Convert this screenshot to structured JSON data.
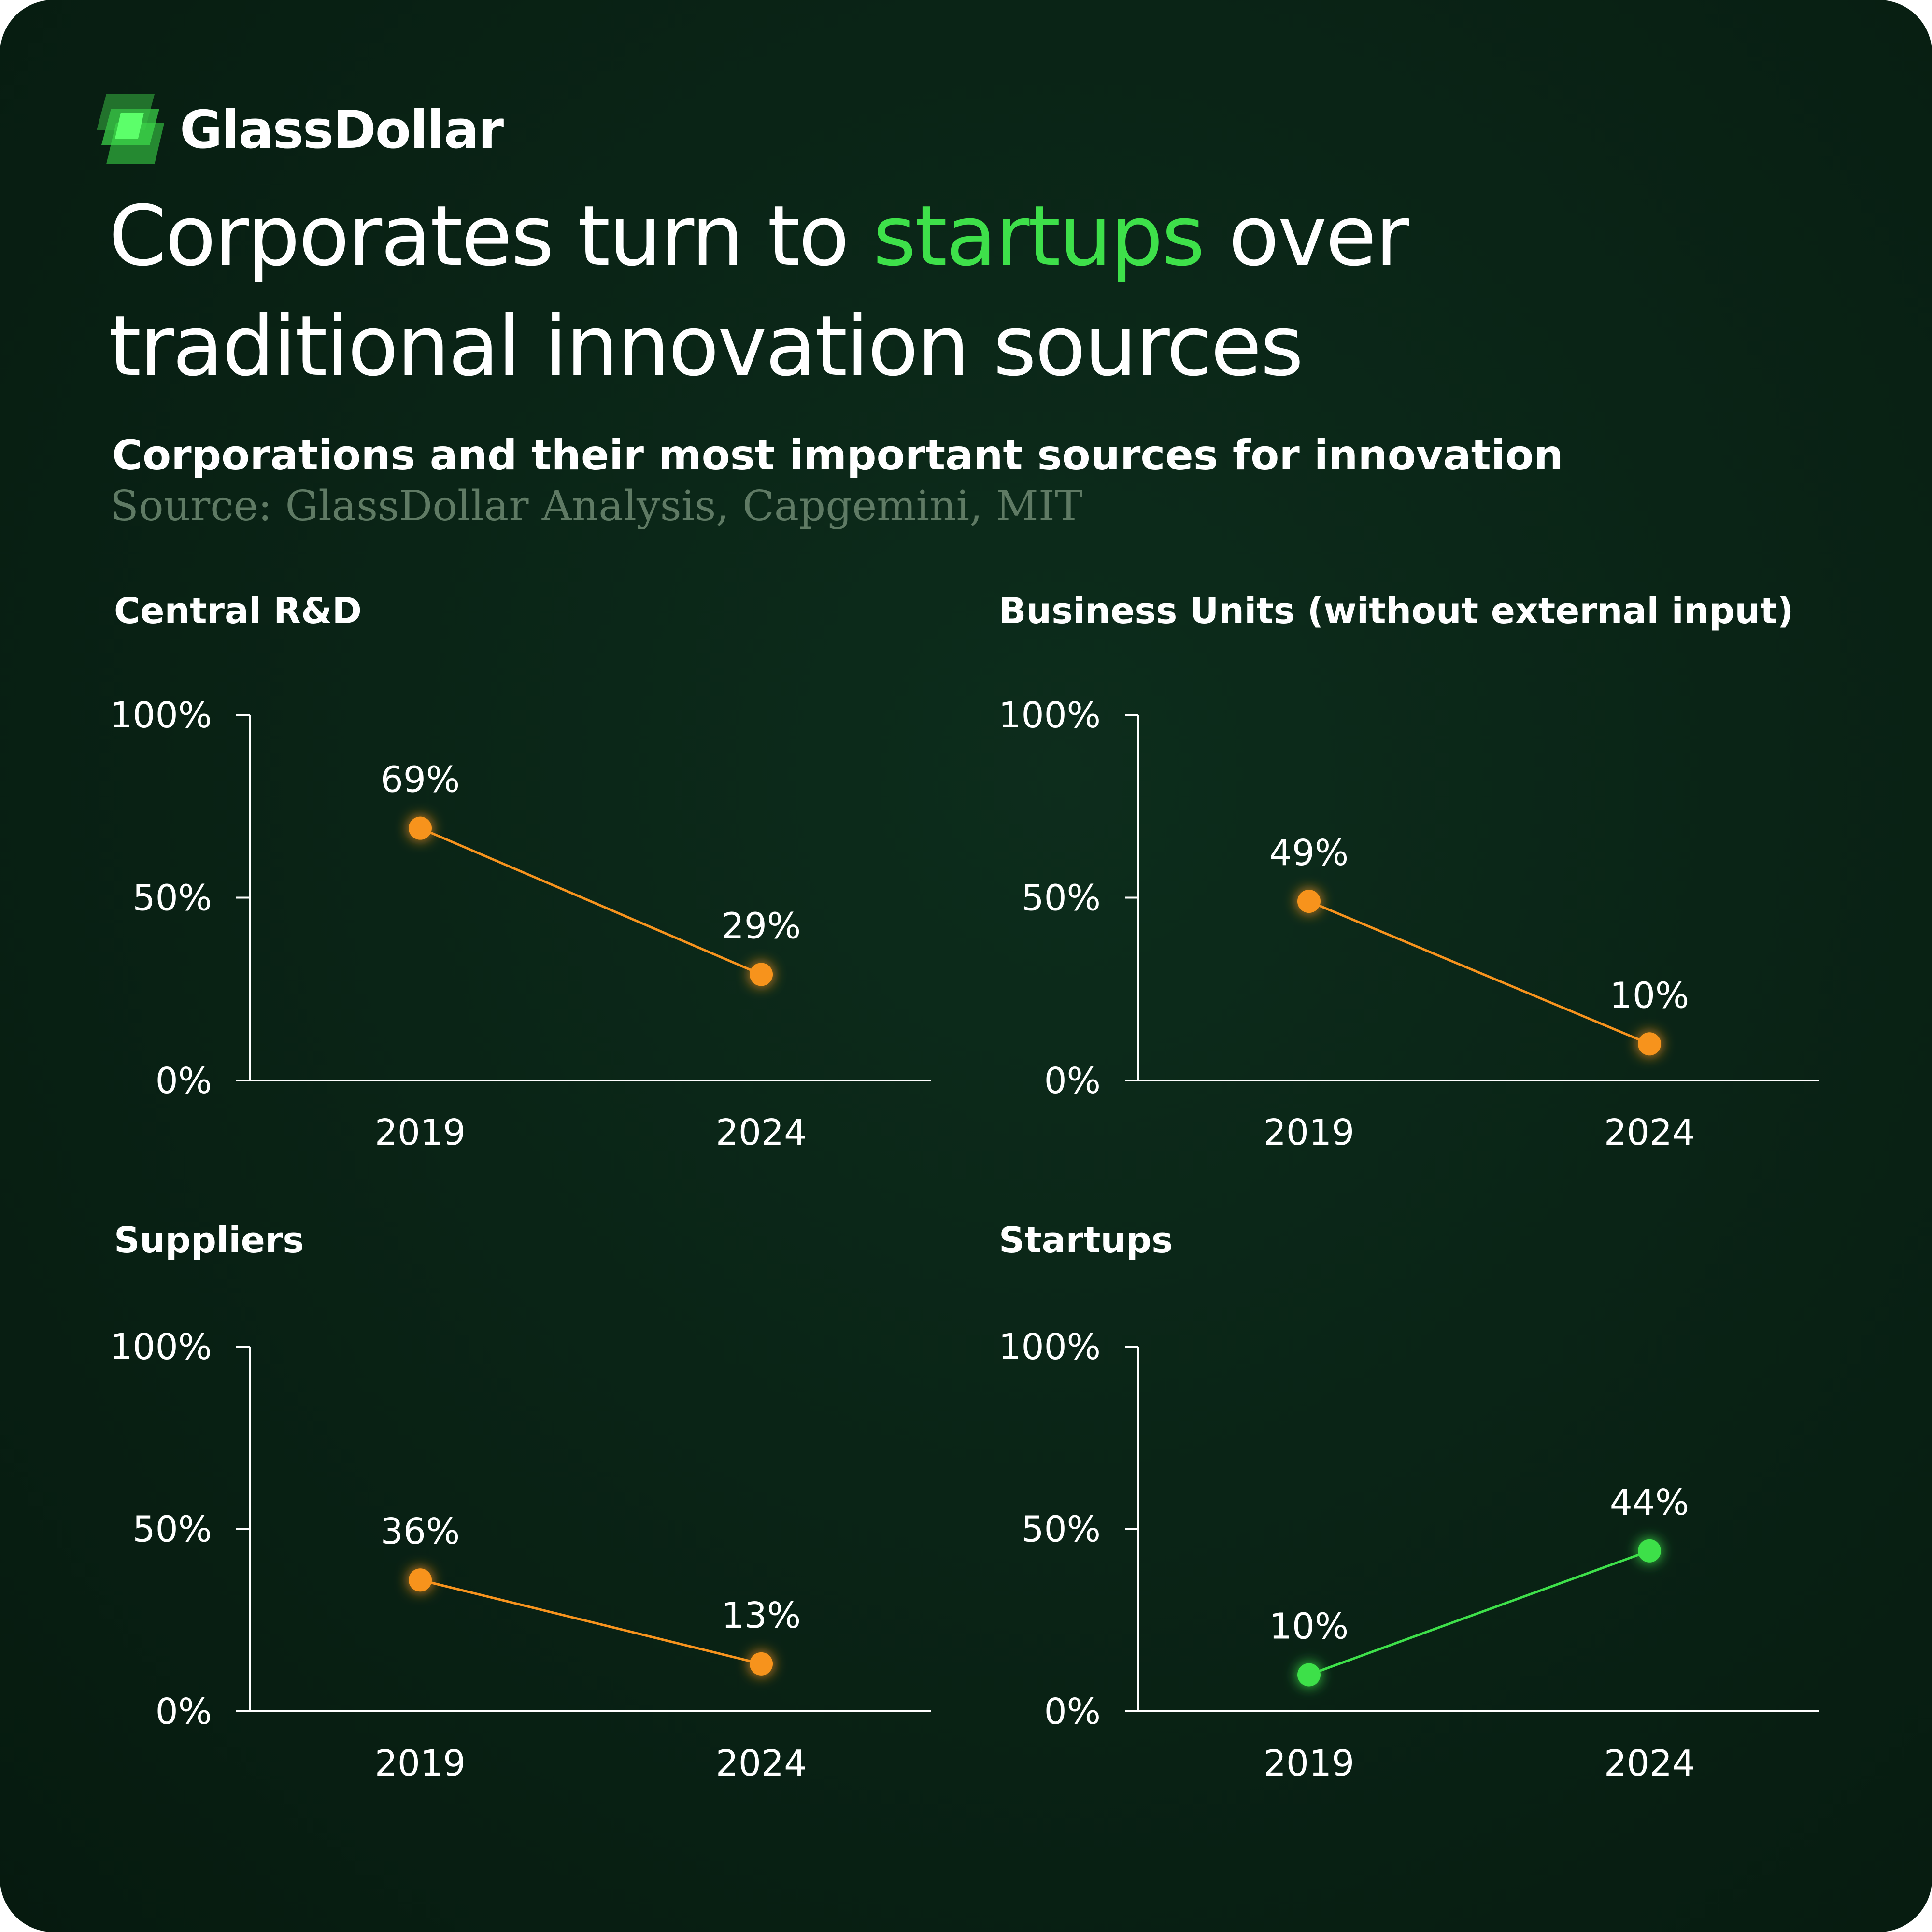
{
  "brand": {
    "name": "GlassDollar",
    "accent_color": "#3ee04a"
  },
  "headline": {
    "part1": "Corporates turn to ",
    "highlight": "startups",
    "part2": " over",
    "line2": "traditional innovation sources"
  },
  "subtitle": "Corporations and their most important sources for innovation",
  "source": "Source: GlassDollar Analysis, Capgemini, MIT",
  "colors": {
    "background": "#0a2416",
    "decline": "#f7931e",
    "growth": "#3ee04a",
    "axis": "#ffffff"
  },
  "chart_data": [
    {
      "type": "line",
      "title": "Central R&D",
      "x": [
        "2019",
        "2024"
      ],
      "values": [
        69,
        29
      ],
      "labels": [
        "69%",
        "29%"
      ],
      "yticks": [
        "0%",
        "50%",
        "100%"
      ],
      "ylim": [
        0,
        100
      ],
      "color": "#f7931e"
    },
    {
      "type": "line",
      "title": "Business Units (without external input)",
      "x": [
        "2019",
        "2024"
      ],
      "values": [
        49,
        10
      ],
      "labels": [
        "49%",
        "10%"
      ],
      "yticks": [
        "0%",
        "50%",
        "100%"
      ],
      "ylim": [
        0,
        100
      ],
      "color": "#f7931e"
    },
    {
      "type": "line",
      "title": "Suppliers",
      "x": [
        "2019",
        "2024"
      ],
      "values": [
        36,
        13
      ],
      "labels": [
        "36%",
        "13%"
      ],
      "yticks": [
        "0%",
        "50%",
        "100%"
      ],
      "ylim": [
        0,
        100
      ],
      "color": "#f7931e"
    },
    {
      "type": "line",
      "title": "Startups",
      "x": [
        "2019",
        "2024"
      ],
      "values": [
        10,
        44
      ],
      "labels": [
        "10%",
        "44%"
      ],
      "yticks": [
        "0%",
        "50%",
        "100%"
      ],
      "ylim": [
        0,
        100
      ],
      "color": "#3ee04a"
    }
  ]
}
